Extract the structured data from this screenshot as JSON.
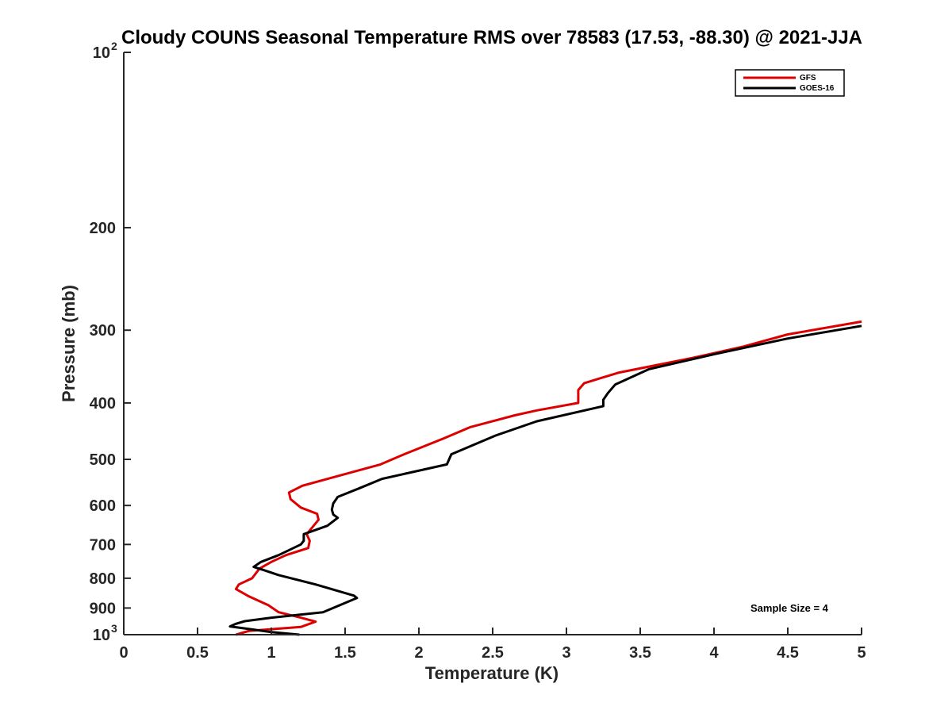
{
  "chart_data": {
    "type": "line",
    "title": "Cloudy COUNS Seasonal Temperature RMS over 78583 (17.53, -88.30) @ 2021-JJA",
    "xlabel": "Temperature (K)",
    "ylabel": "Pressure (mb)",
    "xlim": [
      0,
      5
    ],
    "ylim": [
      1000,
      100
    ],
    "yscale": "log",
    "yreverse": true,
    "x_ticks": [
      0,
      0.5,
      1,
      1.5,
      2,
      2.5,
      3,
      3.5,
      4,
      4.5,
      5
    ],
    "x_tick_labels": [
      "0",
      "0.5",
      "1",
      "1.5",
      "2",
      "2.5",
      "3",
      "3.5",
      "4",
      "4.5",
      "5"
    ],
    "y_ticks": [
      {
        "value": 100,
        "base": "10",
        "exp": "2"
      },
      {
        "value": 200,
        "label": "200"
      },
      {
        "value": 300,
        "label": "300"
      },
      {
        "value": 400,
        "label": "400"
      },
      {
        "value": 500,
        "label": "500"
      },
      {
        "value": 600,
        "label": "600"
      },
      {
        "value": 700,
        "label": "700"
      },
      {
        "value": 800,
        "label": "800"
      },
      {
        "value": 900,
        "label": "900"
      },
      {
        "value": 1000,
        "base": "10",
        "exp": "3"
      }
    ],
    "series": [
      {
        "name": "GFS",
        "color": "#dd0000",
        "points": [
          [
            0.76,
            1000
          ],
          [
            0.85,
            985
          ],
          [
            1.2,
            970
          ],
          [
            1.3,
            950
          ],
          [
            1.2,
            935
          ],
          [
            1.05,
            915
          ],
          [
            0.98,
            890
          ],
          [
            0.85,
            860
          ],
          [
            0.76,
            835
          ],
          [
            0.78,
            820
          ],
          [
            0.87,
            800
          ],
          [
            0.92,
            770
          ],
          [
            1.0,
            750
          ],
          [
            1.1,
            730
          ],
          [
            1.25,
            710
          ],
          [
            1.26,
            690
          ],
          [
            1.24,
            672
          ],
          [
            1.32,
            635
          ],
          [
            1.31,
            620
          ],
          [
            1.2,
            605
          ],
          [
            1.13,
            585
          ],
          [
            1.12,
            570
          ],
          [
            1.21,
            555
          ],
          [
            1.5,
            530
          ],
          [
            1.74,
            510
          ],
          [
            1.9,
            490
          ],
          [
            2.17,
            460
          ],
          [
            2.35,
            440
          ],
          [
            2.65,
            420
          ],
          [
            2.8,
            412
          ],
          [
            3.08,
            400
          ],
          [
            3.08,
            380
          ],
          [
            3.12,
            370
          ],
          [
            3.35,
            355
          ],
          [
            3.85,
            335
          ],
          [
            4.2,
            320
          ],
          [
            4.5,
            305
          ],
          [
            5.0,
            290
          ]
        ]
      },
      {
        "name": "GOES-16",
        "color": "#000000",
        "points": [
          [
            1.19,
            1000
          ],
          [
            1.0,
            990
          ],
          [
            0.88,
            980
          ],
          [
            0.72,
            968
          ],
          [
            0.76,
            958
          ],
          [
            0.82,
            948
          ],
          [
            1.0,
            935
          ],
          [
            1.35,
            915
          ],
          [
            1.58,
            865
          ],
          [
            1.56,
            857
          ],
          [
            1.3,
            820
          ],
          [
            1.05,
            790
          ],
          [
            0.95,
            775
          ],
          [
            0.88,
            765
          ],
          [
            0.93,
            750
          ],
          [
            1.05,
            730
          ],
          [
            1.2,
            700
          ],
          [
            1.22,
            690
          ],
          [
            1.22,
            672
          ],
          [
            1.38,
            650
          ],
          [
            1.45,
            630
          ],
          [
            1.42,
            622
          ],
          [
            1.41,
            610
          ],
          [
            1.42,
            595
          ],
          [
            1.45,
            580
          ],
          [
            1.6,
            560
          ],
          [
            1.75,
            540
          ],
          [
            2.19,
            510
          ],
          [
            2.22,
            490
          ],
          [
            2.52,
            455
          ],
          [
            2.8,
            430
          ],
          [
            3.25,
            405
          ],
          [
            3.25,
            395
          ],
          [
            3.28,
            385
          ],
          [
            3.33,
            372
          ],
          [
            3.56,
            350
          ],
          [
            4.0,
            330
          ],
          [
            4.5,
            310
          ],
          [
            5.0,
            295
          ]
        ]
      }
    ],
    "legend": {
      "position": "top-right",
      "entries": [
        {
          "label": "GFS",
          "color": "#dd0000"
        },
        {
          "label": "GOES-16",
          "color": "#000000"
        }
      ]
    },
    "annotation": "Sample Size = 4",
    "grid": false
  }
}
